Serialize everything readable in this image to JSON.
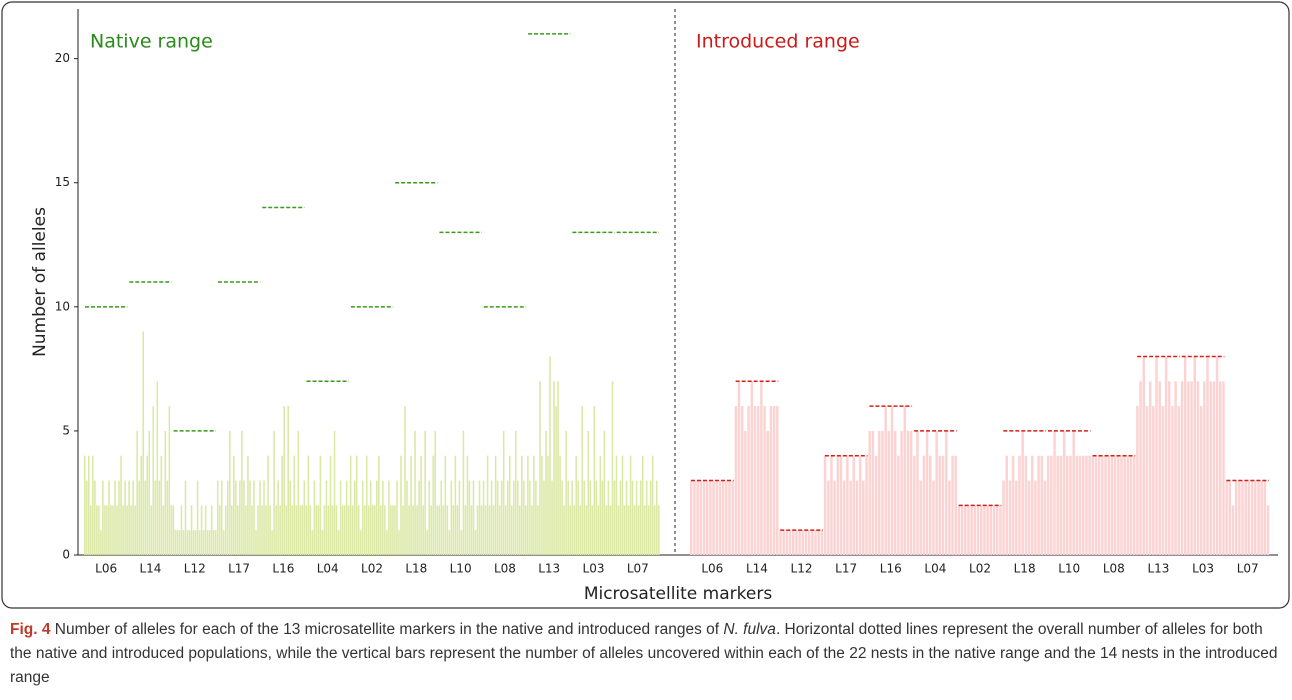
{
  "chart_data": {
    "type": "bar",
    "ylabel": "Number of alleles",
    "xlabel": "Microsatellite markers",
    "ylim": [
      0,
      22
    ],
    "yticks": [
      0,
      5,
      10,
      15,
      20
    ],
    "categories": [
      "L06",
      "L14",
      "L12",
      "L17",
      "L16",
      "L04",
      "L02",
      "L18",
      "L10",
      "L08",
      "L13",
      "L03",
      "L07"
    ],
    "panels": [
      {
        "title": "Native range",
        "title_color": "#2a8a1a",
        "color": "#dbe8a6",
        "line_color": "#3a9a1a",
        "totals": [
          10,
          11,
          5,
          11,
          14,
          7,
          10,
          15,
          13,
          10,
          21,
          13,
          13
        ],
        "nests": [
          [
            4,
            3,
            4,
            2,
            4,
            3,
            2,
            2,
            1,
            3,
            2,
            2,
            3,
            2,
            2,
            3,
            2,
            3,
            4,
            2,
            3,
            2
          ],
          [
            3,
            2,
            3,
            2,
            5,
            3,
            4,
            9,
            3,
            4,
            5,
            2,
            6,
            3,
            7,
            3,
            4,
            2,
            5,
            3,
            6,
            2
          ],
          [
            2,
            1,
            1,
            1,
            2,
            1,
            3,
            1,
            1,
            2,
            1,
            1,
            3,
            1,
            2,
            1,
            2,
            1,
            1,
            2,
            1,
            1
          ],
          [
            3,
            2,
            3,
            1,
            2,
            3,
            5,
            2,
            4,
            3,
            2,
            3,
            5,
            3,
            2,
            4,
            3,
            2,
            3,
            1,
            2,
            3
          ],
          [
            2,
            3,
            2,
            4,
            2,
            1,
            5,
            2,
            3,
            2,
            4,
            6,
            2,
            6,
            3,
            2,
            4,
            2,
            5,
            2,
            2,
            3
          ],
          [
            2,
            4,
            2,
            1,
            3,
            2,
            2,
            4,
            1,
            2,
            3,
            2,
            4,
            2,
            5,
            2,
            1,
            3,
            2,
            2,
            3,
            2
          ],
          [
            4,
            2,
            3,
            4,
            2,
            1,
            3,
            2,
            4,
            2,
            3,
            2,
            2,
            3,
            4,
            2,
            3,
            2,
            1,
            3,
            2,
            2
          ],
          [
            2,
            3,
            1,
            4,
            2,
            6,
            3,
            2,
            4,
            2,
            5,
            2,
            3,
            4,
            2,
            5,
            1,
            3,
            2,
            4,
            5,
            2
          ],
          [
            2,
            3,
            2,
            4,
            2,
            1,
            3,
            2,
            4,
            2,
            3,
            1,
            5,
            2,
            4,
            3,
            2,
            3,
            1,
            2,
            3,
            2
          ],
          [
            3,
            2,
            4,
            2,
            3,
            2,
            4,
            3,
            2,
            3,
            5,
            2,
            3,
            4,
            2,
            3,
            5,
            3,
            2,
            4,
            3,
            2
          ],
          [
            4,
            3,
            2,
            4,
            3,
            2,
            7,
            4,
            3,
            5,
            4,
            8,
            3,
            7,
            6,
            7,
            4,
            3,
            2,
            5,
            3,
            2
          ],
          [
            3,
            2,
            4,
            3,
            2,
            6,
            3,
            2,
            5,
            3,
            2,
            6,
            3,
            2,
            4,
            3,
            5,
            2,
            3,
            2,
            7,
            3
          ],
          [
            4,
            2,
            3,
            4,
            2,
            3,
            2,
            4,
            3,
            2,
            3,
            2,
            3,
            4,
            2,
            3,
            2,
            3,
            4,
            2,
            3,
            2
          ]
        ]
      },
      {
        "title": "Introduced range",
        "title_color": "#cc1a1a",
        "color": "#fcd3d3",
        "line_color": "#d0201a",
        "totals": [
          3,
          7,
          1,
          4,
          6,
          5,
          2,
          5,
          5,
          4,
          8,
          8,
          3
        ],
        "nests": [
          [
            3,
            3,
            3,
            3,
            3,
            3,
            3,
            3,
            3,
            3,
            3,
            3,
            3,
            3
          ],
          [
            6,
            7,
            6,
            5,
            6,
            7,
            6,
            6,
            7,
            6,
            5,
            6,
            6,
            6
          ],
          [
            1,
            1,
            1,
            1,
            1,
            1,
            1,
            1,
            1,
            1,
            1,
            1,
            1,
            1
          ],
          [
            4,
            3,
            4,
            3,
            4,
            4,
            3,
            4,
            3,
            4,
            3,
            4,
            3,
            4
          ],
          [
            5,
            5,
            4,
            5,
            5,
            6,
            5,
            6,
            5,
            4,
            5,
            6,
            5,
            5
          ],
          [
            4,
            5,
            3,
            4,
            5,
            4,
            3,
            5,
            4,
            4,
            5,
            3,
            4,
            4
          ],
          [
            2,
            2,
            2,
            2,
            2,
            2,
            2,
            2,
            2,
            2,
            2,
            2,
            2,
            2
          ],
          [
            3,
            4,
            3,
            4,
            3,
            4,
            5,
            4,
            3,
            4,
            3,
            4,
            4,
            3
          ],
          [
            4,
            4,
            5,
            4,
            4,
            5,
            4,
            4,
            5,
            4,
            4,
            4,
            4,
            4
          ],
          [
            4,
            4,
            4,
            4,
            4,
            4,
            4,
            4,
            4,
            4,
            4,
            4,
            4,
            4
          ],
          [
            6,
            7,
            8,
            6,
            7,
            6,
            8,
            7,
            6,
            8,
            7,
            6,
            7,
            6
          ],
          [
            7,
            8,
            7,
            7,
            8,
            7,
            6,
            7,
            8,
            7,
            7,
            8,
            7,
            7
          ],
          [
            3,
            3,
            2,
            3,
            3,
            3,
            3,
            3,
            3,
            3,
            3,
            3,
            3,
            2
          ]
        ]
      }
    ]
  },
  "caption": [
    "Fig. 4",
    " Number of alleles for each of the 13 microsatellite markers in the native and introduced ranges of ",
    "N. fulva",
    ". Horizontal dotted lines represent the overall number of alleles for both the native and introduced populations, while the vertical bars represent the number of alleles uncovered within each of the 22 nests in the native range and the 14 nests in the introduced range"
  ]
}
